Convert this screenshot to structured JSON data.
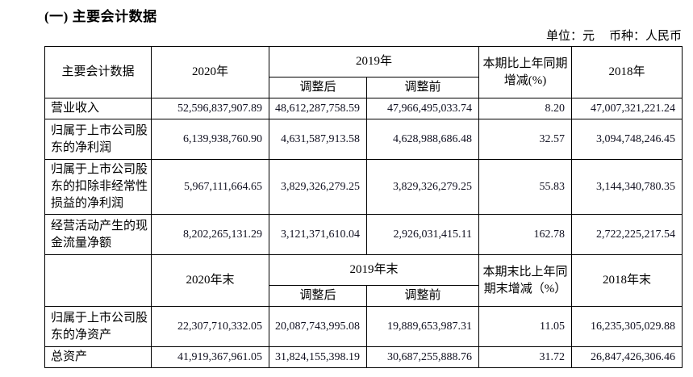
{
  "colors": {
    "background": "#ffffff",
    "text": "#000000",
    "number_text": "#101020",
    "table_border": "#000000"
  },
  "title": "(一) 主要会计数据",
  "unit_note": {
    "unit": "单位：元",
    "currency": "币种：人民币"
  },
  "annual_section": {
    "headers": {
      "item": "主要会计数据",
      "y2020": "2020年",
      "y2019": "2019年",
      "adjusted_after": "调整后",
      "adjusted_before": "调整前",
      "change": "本期比上年同期增减(%)",
      "y2018": "2018年"
    },
    "rows": [
      {
        "label": "营业收入",
        "y2020": "52,596,837,907.89",
        "adj_after": "48,612,287,758.59",
        "adj_before": "47,966,495,033.74",
        "change": "8.20",
        "y2018": "47,007,321,221.24"
      },
      {
        "label": "归属于上市公司股东的净利润",
        "y2020": "6,139,938,760.90",
        "adj_after": "4,631,587,913.58",
        "adj_before": "4,628,988,686.48",
        "change": "32.57",
        "y2018": "3,094,748,246.45"
      },
      {
        "label": "归属于上市公司股东的扣除非经常性损益的净利润",
        "y2020": "5,967,111,664.65",
        "adj_after": "3,829,326,279.25",
        "adj_before": "3,829,326,279.25",
        "change": "55.83",
        "y2018": "3,144,340,780.35"
      },
      {
        "label": "经营活动产生的现金流量净额",
        "y2020": "8,202,265,131.29",
        "adj_after": "3,121,371,610.04",
        "adj_before": "2,926,031,415.11",
        "change": "162.78",
        "y2018": "2,722,225,217.54"
      }
    ]
  },
  "period_end_section": {
    "headers": {
      "item": "",
      "y2020": "2020年末",
      "y2019": "2019年末",
      "adjusted_after": "调整后",
      "adjusted_before": "调整前",
      "change": "本期末比上年同期末增减（%）",
      "y2018": "2018年末"
    },
    "rows": [
      {
        "label": "归属于上市公司股东的净资产",
        "y2020": "22,307,710,332.05",
        "adj_after": "20,087,743,995.08",
        "adj_before": "19,889,653,987.31",
        "change": "11.05",
        "y2018": "16,235,305,029.88"
      },
      {
        "label": "总资产",
        "y2020": "41,919,367,961.05",
        "adj_after": "31,824,155,398.19",
        "adj_before": "30,687,255,888.76",
        "change": "31.72",
        "y2018": "26,847,426,306.46"
      }
    ]
  }
}
